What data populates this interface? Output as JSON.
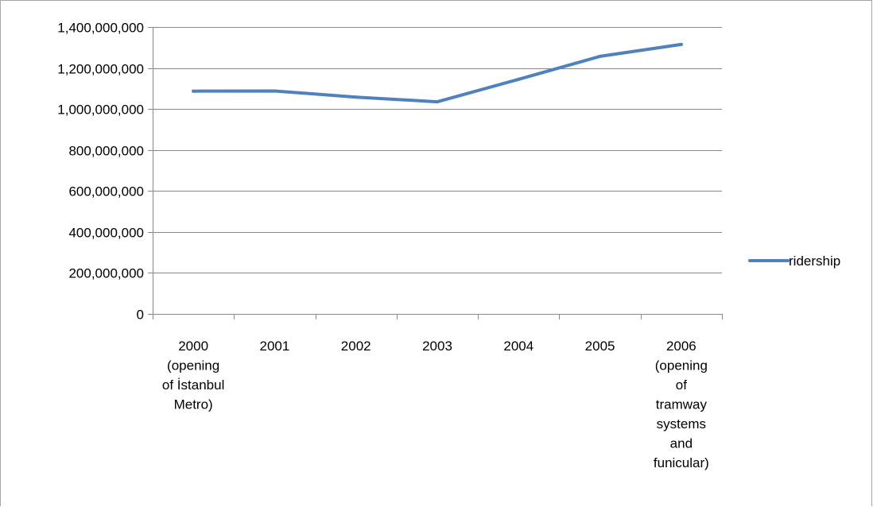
{
  "chart_data": {
    "type": "line",
    "title": "",
    "xlabel": "",
    "ylabel": "",
    "categories": [
      [
        "2000",
        "(opening",
        "of İstanbul",
        "Metro)"
      ],
      [
        "2001"
      ],
      [
        "2002"
      ],
      [
        "2003"
      ],
      [
        "2004"
      ],
      [
        "2005"
      ],
      [
        "2006",
        "(opening",
        "of",
        "tramway",
        "systems",
        "and",
        "funicular)"
      ]
    ],
    "series": [
      {
        "name": "ridership",
        "color": "#4f81bd",
        "values": [
          1087000000,
          1088000000,
          1058000000,
          1035000000,
          1145000000,
          1257000000,
          1315000000
        ]
      }
    ],
    "ylim": [
      0,
      1400000000
    ],
    "yticks": [
      0,
      200000000,
      400000000,
      600000000,
      800000000,
      1000000000,
      1200000000,
      1400000000
    ],
    "ytick_labels": [
      "0",
      "200,000,000",
      "400,000,000",
      "600,000,000",
      "800,000,000",
      "1,000,000,000",
      "1,200,000,000",
      "1,400,000,000"
    ],
    "grid": true,
    "legend_position": "right"
  }
}
